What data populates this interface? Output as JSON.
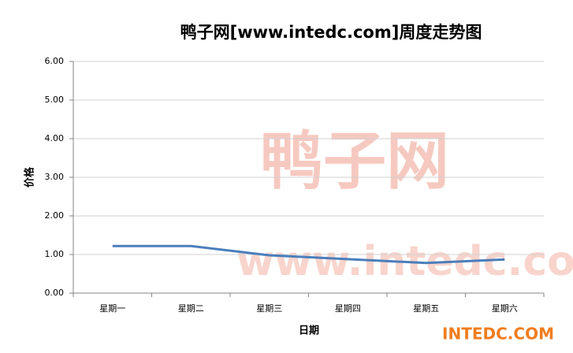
{
  "chart_data": {
    "type": "line",
    "title": "鸭子网[www.intedc.com]周度走势图",
    "x_label": "日期",
    "y_label": "价格",
    "categories": [
      "星期一",
      "星期二",
      "星期三",
      "星期四",
      "星期五",
      "星期六"
    ],
    "series": [
      {
        "name": "价格",
        "color": "#4a7ebb",
        "values": [
          1.22,
          1.22,
          0.98,
          0.88,
          0.78,
          0.87
        ]
      }
    ],
    "ylim": [
      0,
      6
    ],
    "yticks": [
      {
        "value": 0,
        "label": "0.00"
      },
      {
        "value": 1,
        "label": "1.00"
      },
      {
        "value": 2,
        "label": "2.00"
      },
      {
        "value": 3,
        "label": "3.00"
      },
      {
        "value": 4,
        "label": "4.00"
      },
      {
        "value": 5,
        "label": "5.00"
      },
      {
        "value": 6,
        "label": "6.00"
      }
    ],
    "grid": true,
    "watermarks": [
      "鸭子网",
      "www.intedc.com",
      "INTEDC.COM"
    ]
  }
}
